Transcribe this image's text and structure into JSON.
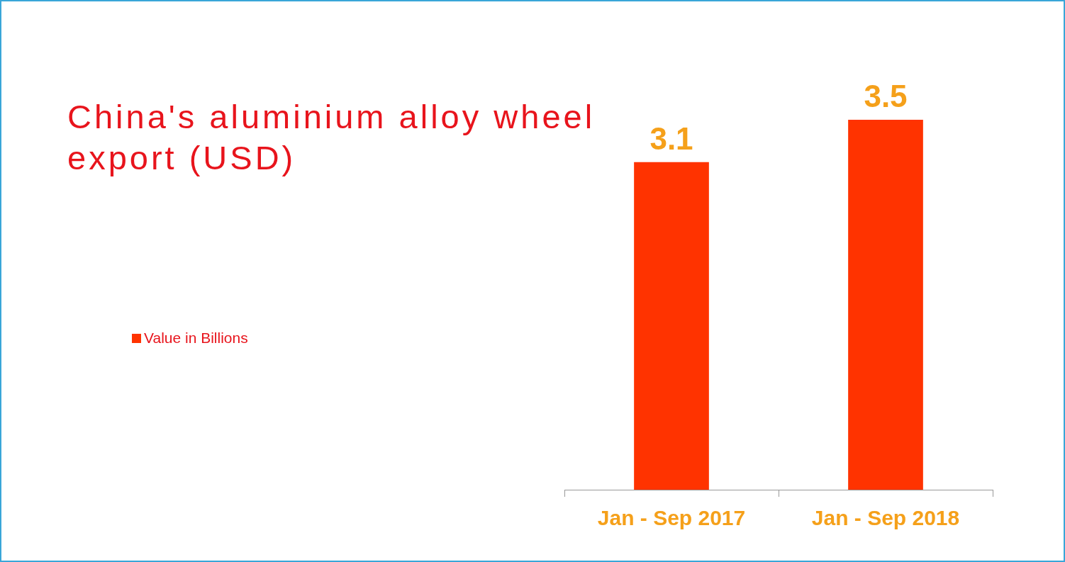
{
  "chart_data": {
    "type": "bar",
    "title": "China's aluminium alloy wheel export (USD)",
    "categories": [
      "Jan - Sep 2017",
      "Jan - Sep 2018"
    ],
    "series": [
      {
        "name": "Value in Billions",
        "color": "#ff3300",
        "values": [
          3.1,
          3.5
        ]
      }
    ],
    "tick_labels": "x",
    "data_labels": true,
    "legend": "left",
    "grid": false
  }
}
